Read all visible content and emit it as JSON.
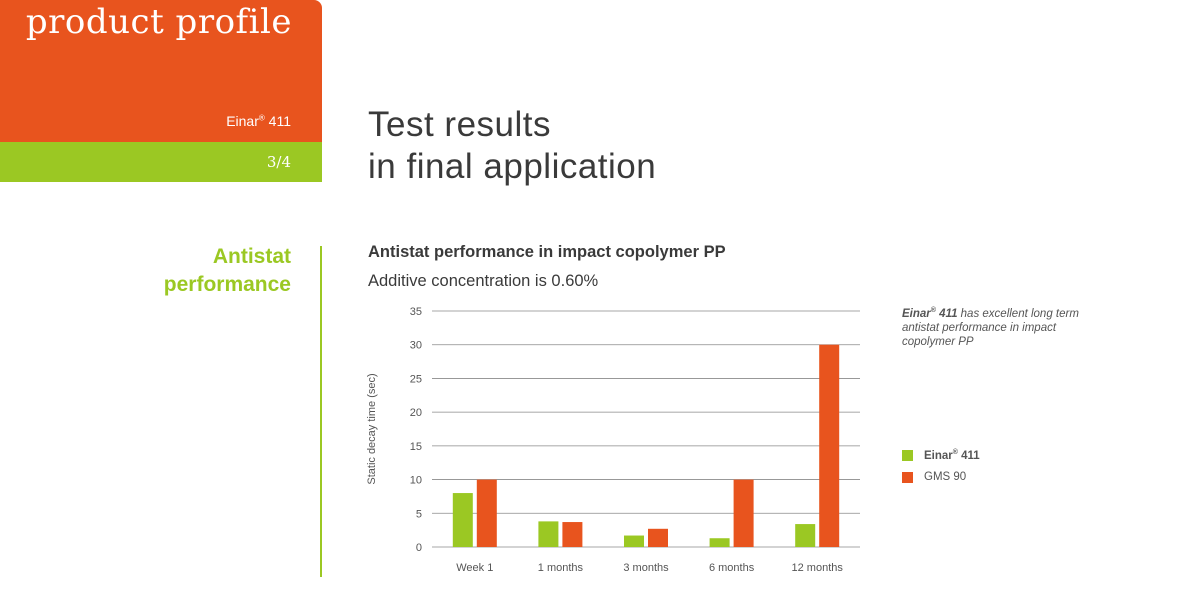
{
  "header": {
    "brand": "product profile",
    "product_name": "Einar",
    "product_reg": "®",
    "product_code": " 411",
    "page_number": "3/4"
  },
  "page_title": {
    "line1": "Test results",
    "line2": "in final application"
  },
  "section": {
    "heading_line1": "Antistat",
    "heading_line2": "performance"
  },
  "annotation": {
    "product": "Einar",
    "reg": "®",
    "code": " 411",
    "text": " has excellent long term antistat performance in impact copolymer PP"
  },
  "colors": {
    "orange": "#e8541e",
    "green": "#9bc823",
    "text": "#3a3a3a",
    "grid": "#8a8a8a"
  },
  "chart_data": {
    "type": "bar",
    "title": "Antistat performance in impact copolymer PP",
    "subtitle": "Additive concentration is 0.60%",
    "ylabel": "Static decay time (sec)",
    "ylim": [
      0,
      35
    ],
    "yticks": [
      0,
      5,
      10,
      15,
      20,
      25,
      30,
      35
    ],
    "grid": true,
    "legend_position": "right",
    "categories": [
      "Week 1",
      "1 months",
      "3 months",
      "6 months",
      "12 months"
    ],
    "series": [
      {
        "name": "Einar",
        "reg": "®",
        "code": " 411",
        "color": "#9bc823",
        "values": [
          8,
          3.8,
          1.7,
          1.3,
          3.4
        ]
      },
      {
        "name": "GMS 90",
        "color": "#e8541e",
        "values": [
          10,
          3.7,
          2.7,
          10,
          30
        ]
      }
    ]
  }
}
